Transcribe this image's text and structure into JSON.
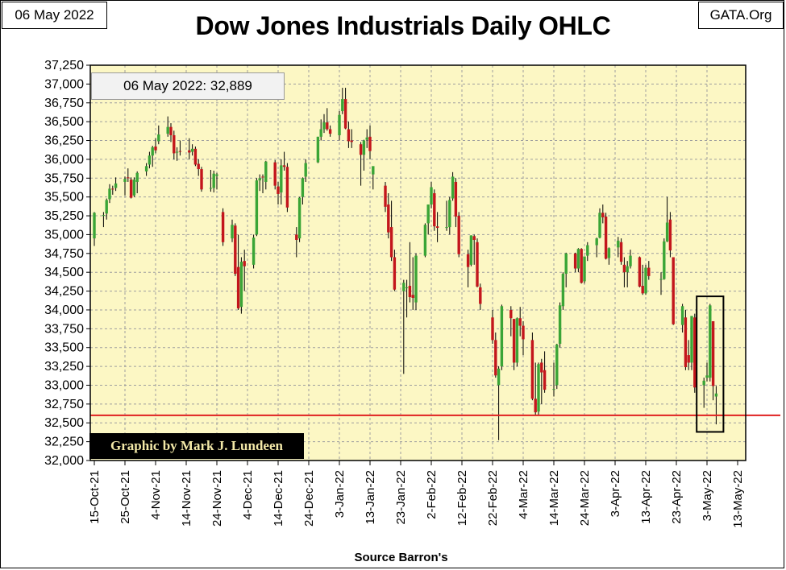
{
  "header": {
    "date_label": "06 May 2022",
    "org_label": "GATA.Org",
    "title": "Dow Jones Industrials Daily OHLC"
  },
  "annotation": "06 May 2022: 32,889",
  "credit": "Graphic by Mark J. Lundeen",
  "source": "Source Barron's",
  "colors": {
    "plot_background": "#fcf7c4",
    "grid": "#9e9e9e",
    "up_candle": "#3aa536",
    "down_candle": "#c3161c",
    "reference_line": "#e02020",
    "highlight_box": "#000000"
  },
  "chart_data": {
    "type": "ohlc-candlestick",
    "title": "Dow Jones Industrials Daily OHLC",
    "xlabel": "Source Barron's",
    "ylabel": "",
    "ylim": [
      32000,
      37250
    ],
    "ytick_step": 250,
    "yticks": [
      "37,250",
      "37,000",
      "36,750",
      "36,500",
      "36,250",
      "36,000",
      "35,750",
      "35,500",
      "35,250",
      "35,000",
      "34,750",
      "34,500",
      "34,250",
      "34,000",
      "33,750",
      "33,500",
      "33,250",
      "33,000",
      "32,750",
      "32,500",
      "32,250",
      "32,000"
    ],
    "xticks": [
      "15-Oct-21",
      "25-Oct-21",
      "4-Nov-21",
      "14-Nov-21",
      "24-Nov-21",
      "4-Dec-21",
      "14-Dec-21",
      "24-Dec-21",
      "3-Jan-22",
      "13-Jan-22",
      "23-Jan-22",
      "2-Feb-22",
      "12-Feb-22",
      "22-Feb-22",
      "4-Mar-22",
      "14-Mar-22",
      "24-Mar-22",
      "3-Apr-22",
      "13-Apr-22",
      "23-Apr-22",
      "3-May-22",
      "13-May-22"
    ],
    "grid": true,
    "reference_line": 32600,
    "highlight": {
      "from": "2-May-22",
      "to": "6-May-22",
      "low": 32380,
      "high": 34180
    },
    "ohlc_columns": [
      "date",
      "open",
      "high",
      "low",
      "close"
    ],
    "series": [
      [
        "15-Oct-21",
        34950,
        35300,
        34850,
        35290
      ],
      [
        "18-Oct-21",
        35250,
        35300,
        35100,
        35260
      ],
      [
        "19-Oct-21",
        35280,
        35480,
        35200,
        35460
      ],
      [
        "20-Oct-21",
        35470,
        35670,
        35420,
        35610
      ],
      [
        "21-Oct-21",
        35610,
        35650,
        35530,
        35600
      ],
      [
        "22-Oct-21",
        35620,
        35760,
        35580,
        35680
      ],
      [
        "25-Oct-21",
        35700,
        35770,
        35520,
        35740
      ],
      [
        "26-Oct-21",
        35760,
        35880,
        35700,
        35750
      ],
      [
        "27-Oct-21",
        35730,
        35760,
        35480,
        35490
      ],
      [
        "28-Oct-21",
        35520,
        35760,
        35500,
        35730
      ],
      [
        "29-Oct-21",
        35700,
        35840,
        35550,
        35820
      ],
      [
        "1-Nov-21",
        35840,
        35950,
        35780,
        35910
      ],
      [
        "2-Nov-21",
        35930,
        36100,
        35880,
        36050
      ],
      [
        "3-Nov-21",
        36050,
        36180,
        35900,
        36160
      ],
      [
        "4-Nov-21",
        36170,
        36280,
        36080,
        36120
      ],
      [
        "5-Nov-21",
        36240,
        36450,
        36200,
        36330
      ],
      [
        "8-Nov-21",
        36340,
        36570,
        36300,
        36430
      ],
      [
        "9-Nov-21",
        36430,
        36480,
        36230,
        36320
      ],
      [
        "10-Nov-21",
        36320,
        36380,
        36000,
        36080
      ],
      [
        "11-Nov-21",
        36090,
        36160,
        35980,
        36100
      ],
      [
        "12-Nov-21",
        36110,
        36250,
        36050,
        36100
      ],
      [
        "15-Nov-21",
        36120,
        36280,
        36000,
        36090
      ],
      [
        "16-Nov-21",
        36100,
        36200,
        36050,
        36140
      ],
      [
        "17-Nov-21",
        36140,
        36170,
        35910,
        35930
      ],
      [
        "18-Nov-21",
        35940,
        36000,
        35780,
        35870
      ],
      [
        "19-Nov-21",
        35870,
        35900,
        35570,
        35600
      ],
      [
        "22-Nov-21",
        35610,
        35860,
        35570,
        35620
      ],
      [
        "23-Nov-21",
        35620,
        35850,
        35560,
        35810
      ],
      [
        "24-Nov-21",
        35780,
        35820,
        35600,
        35800
      ],
      [
        "26-Nov-21",
        35300,
        35350,
        34850,
        34900
      ],
      [
        "29-Nov-21",
        34950,
        35200,
        34900,
        35130
      ],
      [
        "30-Nov-21",
        35120,
        35150,
        34450,
        34480
      ],
      [
        "1-Dec-21",
        34570,
        35000,
        34000,
        34020
      ],
      [
        "2-Dec-21",
        34040,
        34700,
        33950,
        34640
      ],
      [
        "3-Dec-21",
        34650,
        34800,
        34250,
        34580
      ],
      [
        "6-Dec-21",
        34600,
        35000,
        34550,
        34960
      ],
      [
        "7-Dec-21",
        35000,
        35750,
        34980,
        35720
      ],
      [
        "8-Dec-21",
        35720,
        35800,
        35580,
        35750
      ],
      [
        "9-Dec-21",
        35770,
        35800,
        35550,
        35760
      ],
      [
        "10-Dec-21",
        35700,
        35980,
        35600,
        35970
      ],
      [
        "13-Dec-21",
        35960,
        35990,
        35600,
        35650
      ],
      [
        "14-Dec-21",
        35640,
        35700,
        35400,
        35540
      ],
      [
        "15-Dec-21",
        35560,
        36000,
        35400,
        35920
      ],
      [
        "16-Dec-21",
        35920,
        36100,
        35850,
        35900
      ],
      [
        "17-Dec-21",
        35900,
        35950,
        35300,
        35360
      ],
      [
        "20-Dec-21",
        35000,
        35100,
        34700,
        34930
      ],
      [
        "21-Dec-21",
        34950,
        35500,
        34900,
        35490
      ],
      [
        "22-Dec-21",
        35500,
        35760,
        35400,
        35750
      ],
      [
        "23-Dec-21",
        35770,
        36000,
        35700,
        35950
      ],
      [
        "27-Dec-21",
        35960,
        36300,
        35950,
        36300
      ],
      [
        "28-Dec-21",
        36300,
        36530,
        36250,
        36400
      ],
      [
        "29-Dec-21",
        36400,
        36600,
        36350,
        36490
      ],
      [
        "30-Dec-21",
        36490,
        36680,
        36380,
        36400
      ],
      [
        "31-Dec-21",
        36400,
        36450,
        36300,
        36340
      ],
      [
        "3-Jan-22",
        36320,
        36640,
        36250,
        36590
      ],
      [
        "4-Jan-22",
        36640,
        36950,
        36600,
        36800
      ],
      [
        "5-Jan-22",
        36800,
        36950,
        36400,
        36410
      ],
      [
        "6-Jan-22",
        36400,
        36500,
        36150,
        36240
      ],
      [
        "7-Jan-22",
        36250,
        36400,
        36150,
        36230
      ],
      [
        "10-Jan-22",
        36200,
        36230,
        35650,
        36060
      ],
      [
        "11-Jan-22",
        36060,
        36260,
        35850,
        36250
      ],
      [
        "12-Jan-22",
        36260,
        36400,
        36150,
        36290
      ],
      [
        "13-Jan-22",
        36300,
        36450,
        36000,
        36110
      ],
      [
        "14-Jan-22",
        35800,
        35900,
        35600,
        35910
      ],
      [
        "18-Jan-22",
        35650,
        35700,
        35300,
        35370
      ],
      [
        "19-Jan-22",
        35400,
        35550,
        34950,
        35030
      ],
      [
        "20-Jan-22",
        35100,
        35450,
        34650,
        34700
      ],
      [
        "21-Jan-22",
        34700,
        34800,
        34250,
        34270
      ],
      [
        "24-Jan-22",
        34250,
        34400,
        33150,
        34360
      ],
      [
        "25-Jan-22",
        34300,
        34400,
        33900,
        34300
      ],
      [
        "26-Jan-22",
        34320,
        34900,
        34100,
        34170
      ],
      [
        "27-Jan-22",
        34200,
        34700,
        34000,
        34160
      ],
      [
        "28-Jan-22",
        34100,
        34750,
        34000,
        34720
      ],
      [
        "31-Jan-22",
        34720,
        35150,
        34700,
        35130
      ],
      [
        "1-Feb-22",
        35150,
        35400,
        35000,
        35400
      ],
      [
        "2-Feb-22",
        35400,
        35700,
        35350,
        35630
      ],
      [
        "3-Feb-22",
        35550,
        35600,
        35050,
        35110
      ],
      [
        "4-Feb-22",
        35110,
        35300,
        34900,
        35090
      ],
      [
        "7-Feb-22",
        35100,
        35450,
        35050,
        35100
      ],
      [
        "8-Feb-22",
        35100,
        35500,
        35000,
        35460
      ],
      [
        "9-Feb-22",
        35480,
        35830,
        35450,
        35770
      ],
      [
        "10-Feb-22",
        35700,
        35750,
        35100,
        35240
      ],
      [
        "11-Feb-22",
        35250,
        35300,
        34700,
        34740
      ],
      [
        "14-Feb-22",
        34740,
        34800,
        34300,
        34570
      ],
      [
        "15-Feb-22",
        34600,
        34990,
        34580,
        34990
      ],
      [
        "16-Feb-22",
        34980,
        35000,
        34600,
        34930
      ],
      [
        "17-Feb-22",
        34900,
        34950,
        34300,
        34310
      ],
      [
        "18-Feb-22",
        34300,
        34350,
        34000,
        34080
      ],
      [
        "22-Feb-22",
        33900,
        34000,
        33550,
        33600
      ],
      [
        "23-Feb-22",
        33600,
        33700,
        33100,
        33130
      ],
      [
        "24-Feb-22",
        33000,
        33250,
        32270,
        33220
      ],
      [
        "25-Feb-22",
        33250,
        34070,
        33200,
        34050
      ],
      [
        "28-Feb-22",
        34000,
        34050,
        33650,
        33890
      ],
      [
        "1-Mar-22",
        33880,
        33880,
        33200,
        33300
      ],
      [
        "2-Mar-22",
        33300,
        33900,
        33250,
        33890
      ],
      [
        "3-Mar-22",
        33890,
        34040,
        33650,
        33790
      ],
      [
        "4-Mar-22",
        33790,
        33850,
        33400,
        33610
      ],
      [
        "7-Mar-22",
        33600,
        33700,
        32800,
        32820
      ],
      [
        "8-Mar-22",
        32820,
        33300,
        32600,
        32640
      ],
      [
        "9-Mar-22",
        32650,
        33300,
        32600,
        33280
      ],
      [
        "10-Mar-22",
        33300,
        33350,
        32750,
        33170
      ],
      [
        "11-Mar-22",
        33200,
        33450,
        32900,
        32940
      ],
      [
        "14-Mar-22",
        32950,
        33300,
        32850,
        32950
      ],
      [
        "15-Mar-22",
        33000,
        33550,
        32950,
        33540
      ],
      [
        "16-Mar-22",
        33550,
        34100,
        33500,
        34060
      ],
      [
        "17-Mar-22",
        34050,
        34500,
        34000,
        34480
      ],
      [
        "18-Mar-22",
        34480,
        34760,
        34300,
        34750
      ],
      [
        "21-Mar-22",
        34750,
        34760,
        34500,
        34550
      ],
      [
        "22-Mar-22",
        34550,
        34820,
        34500,
        34810
      ],
      [
        "23-Mar-22",
        34810,
        34820,
        34350,
        34360
      ],
      [
        "24-Mar-22",
        34380,
        34710,
        34350,
        34710
      ],
      [
        "25-Mar-22",
        34720,
        34900,
        34650,
        34860
      ],
      [
        "28-Mar-22",
        34860,
        34960,
        34700,
        34950
      ],
      [
        "29-Mar-22",
        34960,
        35350,
        34950,
        35290
      ],
      [
        "30-Mar-22",
        35290,
        35400,
        35150,
        35230
      ],
      [
        "31-Mar-22",
        35240,
        35290,
        34670,
        34680
      ],
      [
        "1-Apr-22",
        34690,
        34830,
        34600,
        34820
      ],
      [
        "4-Apr-22",
        34830,
        34970,
        34700,
        34920
      ],
      [
        "5-Apr-22",
        34900,
        34950,
        34600,
        34640
      ],
      [
        "6-Apr-22",
        34600,
        34700,
        34300,
        34500
      ],
      [
        "7-Apr-22",
        34500,
        34650,
        34300,
        34580
      ],
      [
        "8-Apr-22",
        34580,
        34800,
        34550,
        34720
      ],
      [
        "11-Apr-22",
        34700,
        34710,
        34300,
        34310
      ],
      [
        "12-Apr-22",
        34320,
        34600,
        34200,
        34220
      ],
      [
        "13-Apr-22",
        34220,
        34600,
        34200,
        34560
      ],
      [
        "14-Apr-22",
        34560,
        34650,
        34400,
        34450
      ],
      [
        "18-Apr-22",
        34400,
        34500,
        34200,
        34410
      ],
      [
        "19-Apr-22",
        34410,
        34950,
        34400,
        34910
      ],
      [
        "20-Apr-22",
        34910,
        35500,
        34900,
        35160
      ],
      [
        "21-Apr-22",
        35200,
        35300,
        34700,
        34790
      ],
      [
        "22-Apr-22",
        34700,
        34700,
        33800,
        33810
      ],
      [
        "25-Apr-22",
        33800,
        34080,
        33700,
        34050
      ],
      [
        "26-Apr-22",
        33900,
        34000,
        33200,
        33240
      ],
      [
        "27-Apr-22",
        33400,
        33600,
        33200,
        33300
      ],
      [
        "28-Apr-22",
        33300,
        33900,
        33200,
        33920
      ],
      [
        "29-Apr-22",
        33900,
        33950,
        32900,
        32970
      ],
      [
        "2-May-22",
        33000,
        33100,
        32700,
        33060
      ],
      [
        "3-May-22",
        33100,
        33300,
        33050,
        33130
      ],
      [
        "4-May-22",
        33100,
        34080,
        33050,
        34060
      ],
      [
        "5-May-22",
        33850,
        33850,
        32800,
        32990
      ],
      [
        "6-May-22",
        32850,
        32990,
        32480,
        32890
      ]
    ]
  }
}
